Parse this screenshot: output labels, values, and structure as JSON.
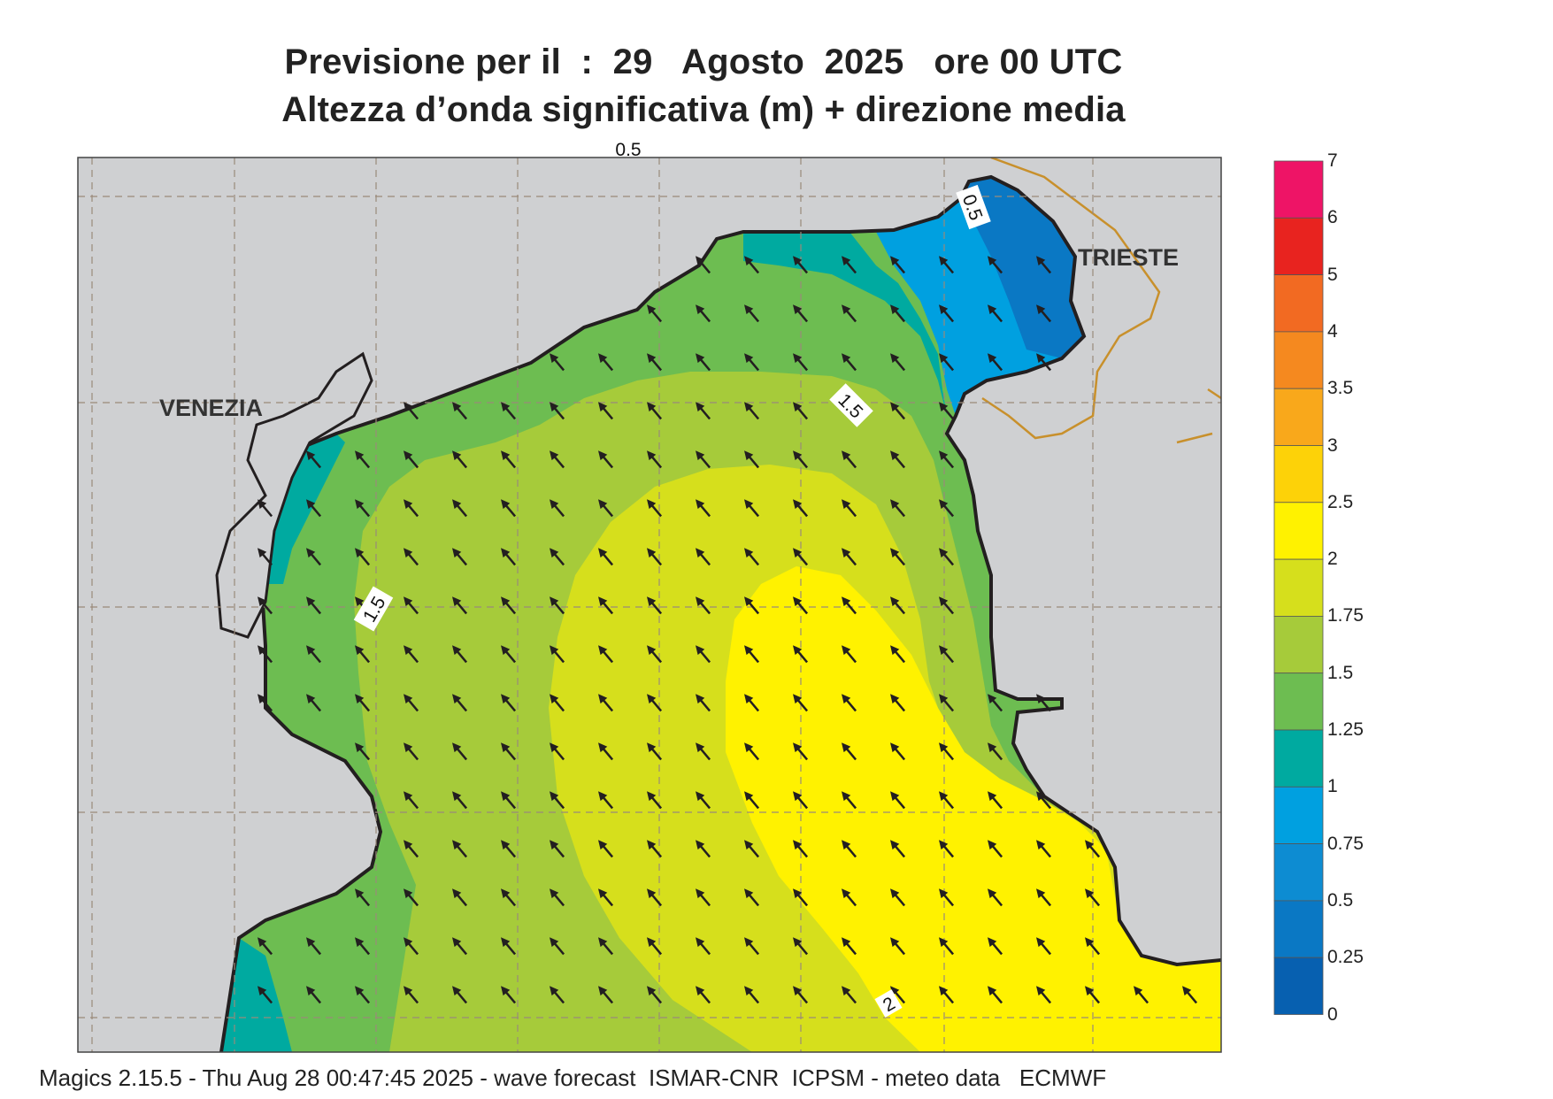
{
  "title_line1": "Previsione per il  :  29   Agosto  2025   ore 00 UTC",
  "title_line2": "Altezza d’onda significativa (m) + direzione media",
  "cities": {
    "venezia": "VENEZIA",
    "trieste": "TRIESTE"
  },
  "contour_labels": [
    "1.5",
    "1.5",
    "0.5",
    "2",
    "0.5"
  ],
  "footer": "Magics 2.15.5 - Thu Aug 28 00:47:45 2025 - wave forecast  ISMAR-CNR  ICPSM - meteo data   ECMWF",
  "legend": {
    "labels": [
      "7",
      "6",
      "5",
      "4",
      "3.5",
      "3",
      "2.5",
      "2",
      "1.75",
      "1.5",
      "1.25",
      "1",
      "0.75",
      "0.5",
      "0.25",
      "0"
    ],
    "colors": [
      "#ee1466",
      "#e8231f",
      "#f26a22",
      "#f5891f",
      "#f9a81b",
      "#fdd208",
      "#fff200",
      "#d6df1c",
      "#a6cb3a",
      "#6dbd51",
      "#00aaa0",
      "#00a0e0",
      "#0d8cd2",
      "#0a78c4",
      "#0760b0"
    ]
  },
  "colors": {
    "land": "#cfd0d2",
    "coast": "#231f20",
    "border": "#c8902c",
    "arrow": "#231f20",
    "grid": "#9a8a7a"
  },
  "wave_direction": "NW"
}
